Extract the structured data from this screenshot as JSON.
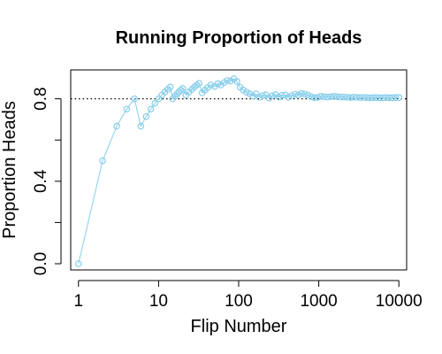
{
  "chart_data": {
    "type": "line",
    "title": "Running Proportion of Heads",
    "xlabel": "Flip Number",
    "ylabel": "Proportion Heads",
    "x_scale": "log",
    "xlim": [
      0.8,
      12500
    ],
    "ylim": [
      -0.03,
      0.94
    ],
    "x_ticks": [
      1,
      10,
      100,
      1000,
      10000
    ],
    "x_tick_labels": [
      "1",
      "10",
      "100",
      "1000",
      "10000"
    ],
    "y_ticks": [
      0.0,
      0.4,
      0.8
    ],
    "y_tick_labels": [
      "0.0",
      "0.4",
      "0.8"
    ],
    "y_minor_ticks": [
      0.2,
      0.6
    ],
    "reference_line": {
      "y": 0.8,
      "style": "dotted",
      "color": "#000000"
    },
    "grid": false,
    "series": [
      {
        "color": "#87ceeb",
        "marker": "open-circle",
        "x": [
          1,
          2,
          3,
          4,
          5,
          6,
          7,
          8,
          9,
          10,
          11,
          12,
          13,
          14,
          15,
          16,
          17,
          18,
          19,
          20,
          22,
          24,
          26,
          28,
          30,
          32,
          35,
          38,
          41,
          45,
          50,
          55,
          60,
          66,
          72,
          79,
          87,
          95,
          104,
          114,
          125,
          137,
          150,
          165,
          181,
          199,
          218,
          240,
          263,
          289,
          317,
          348,
          382,
          419,
          460,
          505,
          554,
          608,
          668,
          733,
          805,
          884,
          970,
          1065,
          1170,
          1285,
          1411,
          1549,
          1701,
          1868,
          2051,
          2252,
          2473,
          2715,
          2981,
          3274,
          3594,
          3947,
          4333,
          4758,
          5224,
          5736,
          6298,
          6915,
          7593,
          8337,
          9154,
          10000
        ],
        "y": [
          0.0,
          0.5,
          0.667,
          0.75,
          0.8,
          0.667,
          0.714,
          0.75,
          0.778,
          0.8,
          0.818,
          0.833,
          0.846,
          0.857,
          0.8,
          0.812,
          0.824,
          0.833,
          0.842,
          0.85,
          0.818,
          0.833,
          0.846,
          0.857,
          0.867,
          0.875,
          0.829,
          0.842,
          0.854,
          0.867,
          0.86,
          0.873,
          0.867,
          0.879,
          0.889,
          0.886,
          0.897,
          0.884,
          0.856,
          0.842,
          0.832,
          0.825,
          0.813,
          0.824,
          0.807,
          0.815,
          0.819,
          0.804,
          0.814,
          0.82,
          0.808,
          0.817,
          0.819,
          0.807,
          0.815,
          0.822,
          0.818,
          0.826,
          0.823,
          0.818,
          0.81,
          0.805,
          0.807,
          0.812,
          0.81,
          0.808,
          0.81,
          0.812,
          0.81,
          0.808,
          0.809,
          0.807,
          0.806,
          0.808,
          0.807,
          0.806,
          0.807,
          0.806,
          0.804,
          0.805,
          0.806,
          0.805,
          0.805,
          0.806,
          0.805,
          0.805,
          0.806,
          0.806
        ]
      }
    ]
  }
}
